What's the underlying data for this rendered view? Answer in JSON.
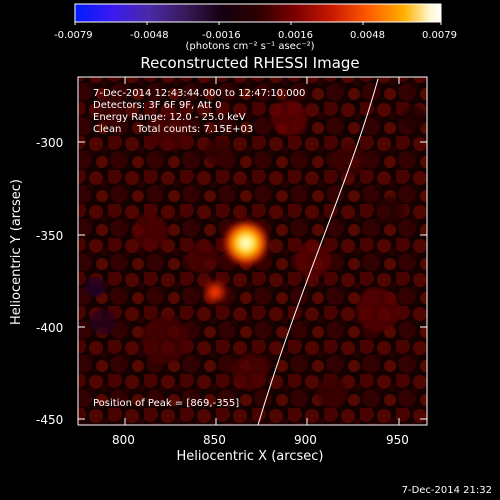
{
  "colorbar": {
    "ticks": [
      "-0.0079",
      "-0.0048",
      "-0.0016",
      "0.0016",
      "0.0048",
      "0.0079"
    ],
    "units_html": "(photons cm⁻² s⁻¹ asec⁻²)",
    "stops": [
      "#001bff",
      "#3a1af0",
      "#4a2aa8",
      "#381a5c",
      "#140010",
      "#2d0000",
      "#7a0000",
      "#c81800",
      "#ff5a00",
      "#ffb000",
      "#fff8d0",
      "#ffffff"
    ]
  },
  "plot": {
    "title": "Reconstructed RHESSI Image",
    "xlabel": "Heliocentric X (arcsec)",
    "ylabel": "Heliocentric Y (arcsec)",
    "xticks": [
      "800",
      "850",
      "900",
      "950"
    ],
    "yticks": [
      "-300",
      "-350",
      "-400",
      "-450"
    ]
  },
  "annotations": {
    "time_range": "7-Dec-2014 12:43:44.000 to 12:47:10.000",
    "detectors": "Detectors: 3F 6F 9F, Att 0",
    "energy": "Energy Range: 12.0 - 25.0 keV",
    "clean": "Clean",
    "counts": "Total counts: 7.15E+03",
    "peak": "Position of Peak = [869,-355]"
  },
  "footer": {
    "timestamp": "7-Dec-2014 21:32"
  }
}
